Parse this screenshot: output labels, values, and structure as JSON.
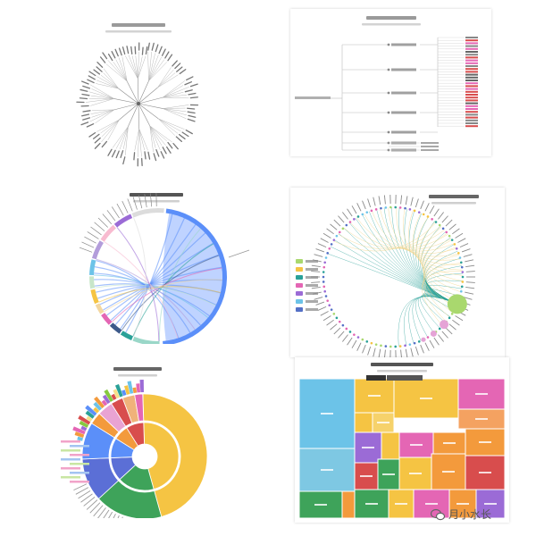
{
  "colors": {
    "blue": "#5b8ff9",
    "light_blue": "#a9c4ff",
    "green": "#3ea35a",
    "yellow": "#f5c443",
    "teal": "#2aa198",
    "pink": "#e466b4",
    "purple": "#9b6bd6",
    "orange": "#f39a3c",
    "sky": "#6cc3e8",
    "lime": "#86c93f",
    "red": "#d84d4d",
    "gray_line": "#bdbdbd"
  },
  "chart_data": [
    {
      "type": "radial-tree",
      "title": "",
      "subtitle": ""
    },
    {
      "type": "tree",
      "title": "",
      "subtitle": ""
    },
    {
      "type": "chord",
      "title": "",
      "subtitle": ""
    },
    {
      "type": "network",
      "title": "",
      "subtitle": ""
    },
    {
      "type": "sunburst",
      "title": "",
      "subtitle": ""
    },
    {
      "type": "treemap",
      "title": "",
      "subtitle": ""
    }
  ],
  "watermark": {
    "icon": "wechat-icon",
    "text": "月小水长"
  }
}
